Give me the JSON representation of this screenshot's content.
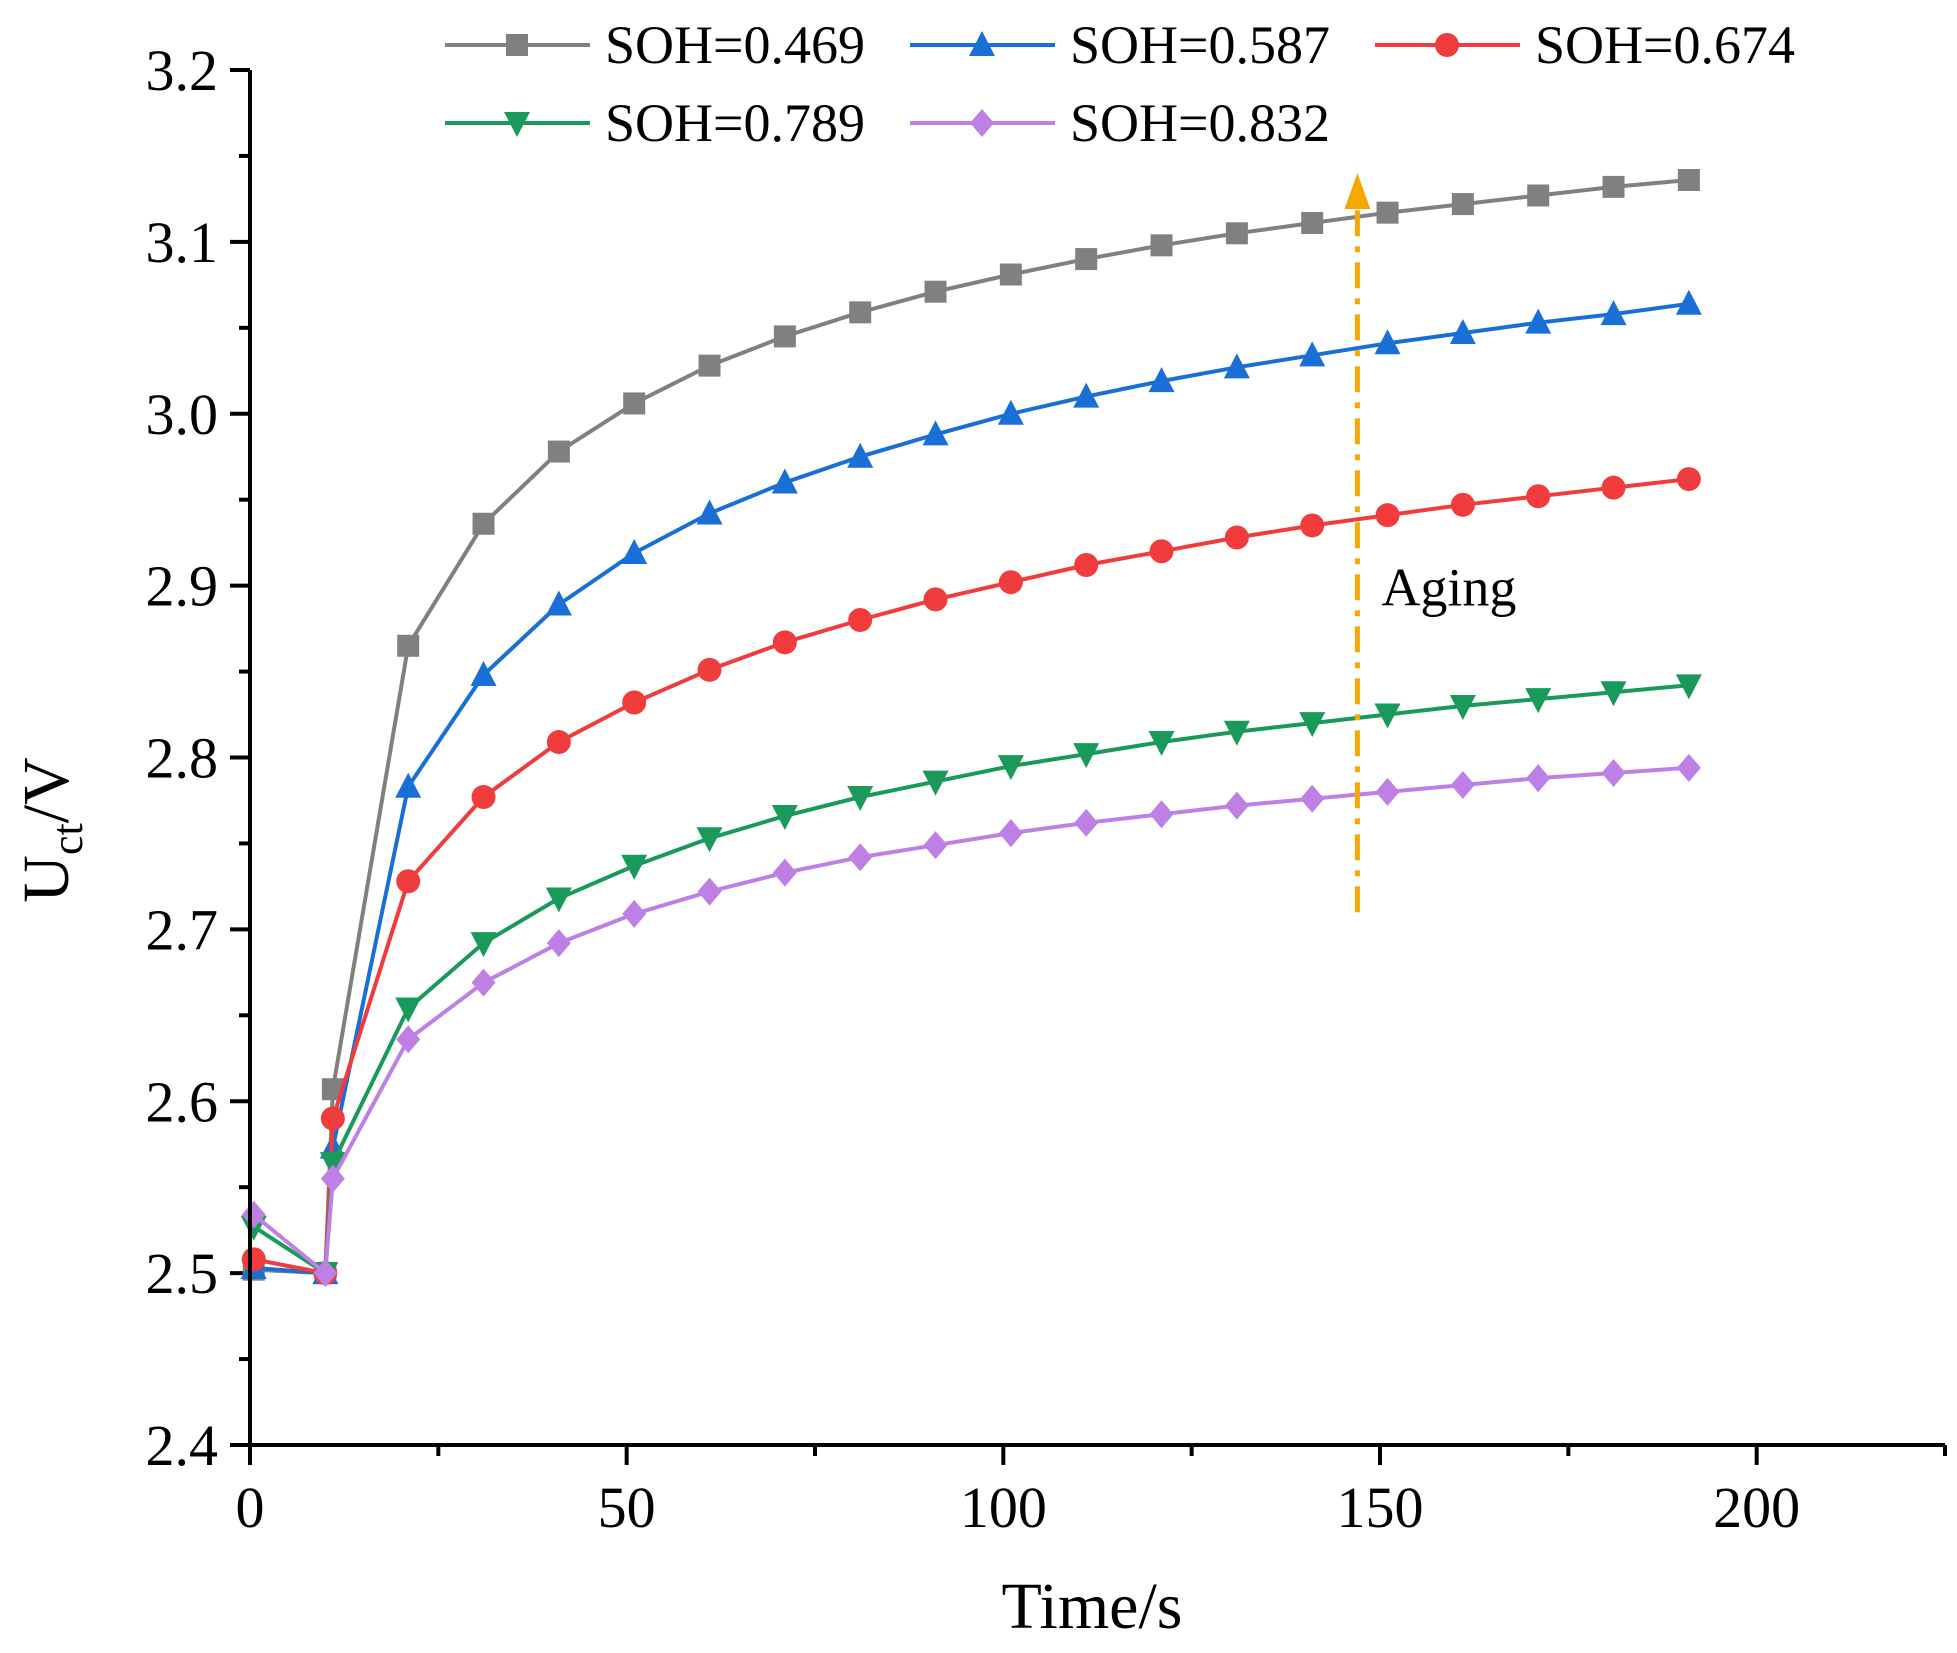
{
  "chart_data": {
    "type": "line",
    "title": "",
    "xlabel": "Time/s",
    "ylabel": {
      "main": "U",
      "sub": "ct",
      "suffix": "/V"
    },
    "xlim": [
      0,
      225
    ],
    "ylim": [
      2.4,
      3.2
    ],
    "x_ticks": [
      0,
      50,
      100,
      150,
      200
    ],
    "x_tick_labels": [
      "0",
      "50",
      "100",
      "150",
      "200"
    ],
    "x_minor_step": 25,
    "y_ticks": [
      2.4,
      2.5,
      2.6,
      2.7,
      2.8,
      2.9,
      3.0,
      3.1,
      3.2
    ],
    "y_tick_labels": [
      "2.4",
      "2.5",
      "2.6",
      "2.7",
      "2.8",
      "2.9",
      "3.0",
      "3.1",
      "3.2"
    ],
    "y_minor_step": 0.05,
    "grid": false,
    "legend_position": "top",
    "x": [
      0.5,
      10,
      11,
      21,
      31,
      41,
      51,
      61,
      71,
      81,
      91,
      101,
      111,
      121,
      131,
      141,
      151,
      161,
      171,
      181,
      191
    ],
    "series": [
      {
        "name": "SOH=0.469",
        "color": "#808080",
        "marker": "square",
        "values": [
          2.502,
          2.5,
          2.607,
          2.865,
          2.936,
          2.978,
          3.006,
          3.028,
          3.045,
          3.059,
          3.071,
          3.081,
          3.09,
          3.098,
          3.105,
          3.111,
          3.117,
          3.122,
          3.127,
          3.132,
          3.136
        ]
      },
      {
        "name": "SOH=0.587",
        "color": "#1a6fd6",
        "marker": "triangle-up",
        "values": [
          2.503,
          2.5,
          2.573,
          2.783,
          2.848,
          2.889,
          2.919,
          2.942,
          2.96,
          2.975,
          2.988,
          3.0,
          3.01,
          3.019,
          3.027,
          3.034,
          3.041,
          3.047,
          3.053,
          3.058,
          3.064
        ]
      },
      {
        "name": "SOH=0.674",
        "color": "#f03c3c",
        "marker": "circle",
        "values": [
          2.508,
          2.5,
          2.59,
          2.728,
          2.777,
          2.809,
          2.832,
          2.851,
          2.867,
          2.88,
          2.892,
          2.902,
          2.912,
          2.92,
          2.928,
          2.935,
          2.941,
          2.947,
          2.952,
          2.957,
          2.962
        ]
      },
      {
        "name": "SOH=0.789",
        "color": "#1a9a5a",
        "marker": "triangle-down",
        "values": [
          2.527,
          2.5,
          2.564,
          2.654,
          2.692,
          2.718,
          2.737,
          2.753,
          2.766,
          2.777,
          2.786,
          2.795,
          2.802,
          2.809,
          2.815,
          2.82,
          2.825,
          2.83,
          2.834,
          2.838,
          2.842
        ]
      },
      {
        "name": "SOH=0.832",
        "color": "#bf80e6",
        "marker": "diamond",
        "values": [
          2.534,
          2.5,
          2.555,
          2.636,
          2.669,
          2.692,
          2.709,
          2.722,
          2.733,
          2.742,
          2.749,
          2.756,
          2.762,
          2.767,
          2.772,
          2.776,
          2.78,
          2.784,
          2.788,
          2.791,
          2.794
        ]
      }
    ],
    "annotations": [
      {
        "text": "Aging",
        "arrow": {
          "x": 147,
          "from_y": 2.71,
          "to_y": 3.14
        },
        "color": "#f5a800"
      }
    ]
  }
}
